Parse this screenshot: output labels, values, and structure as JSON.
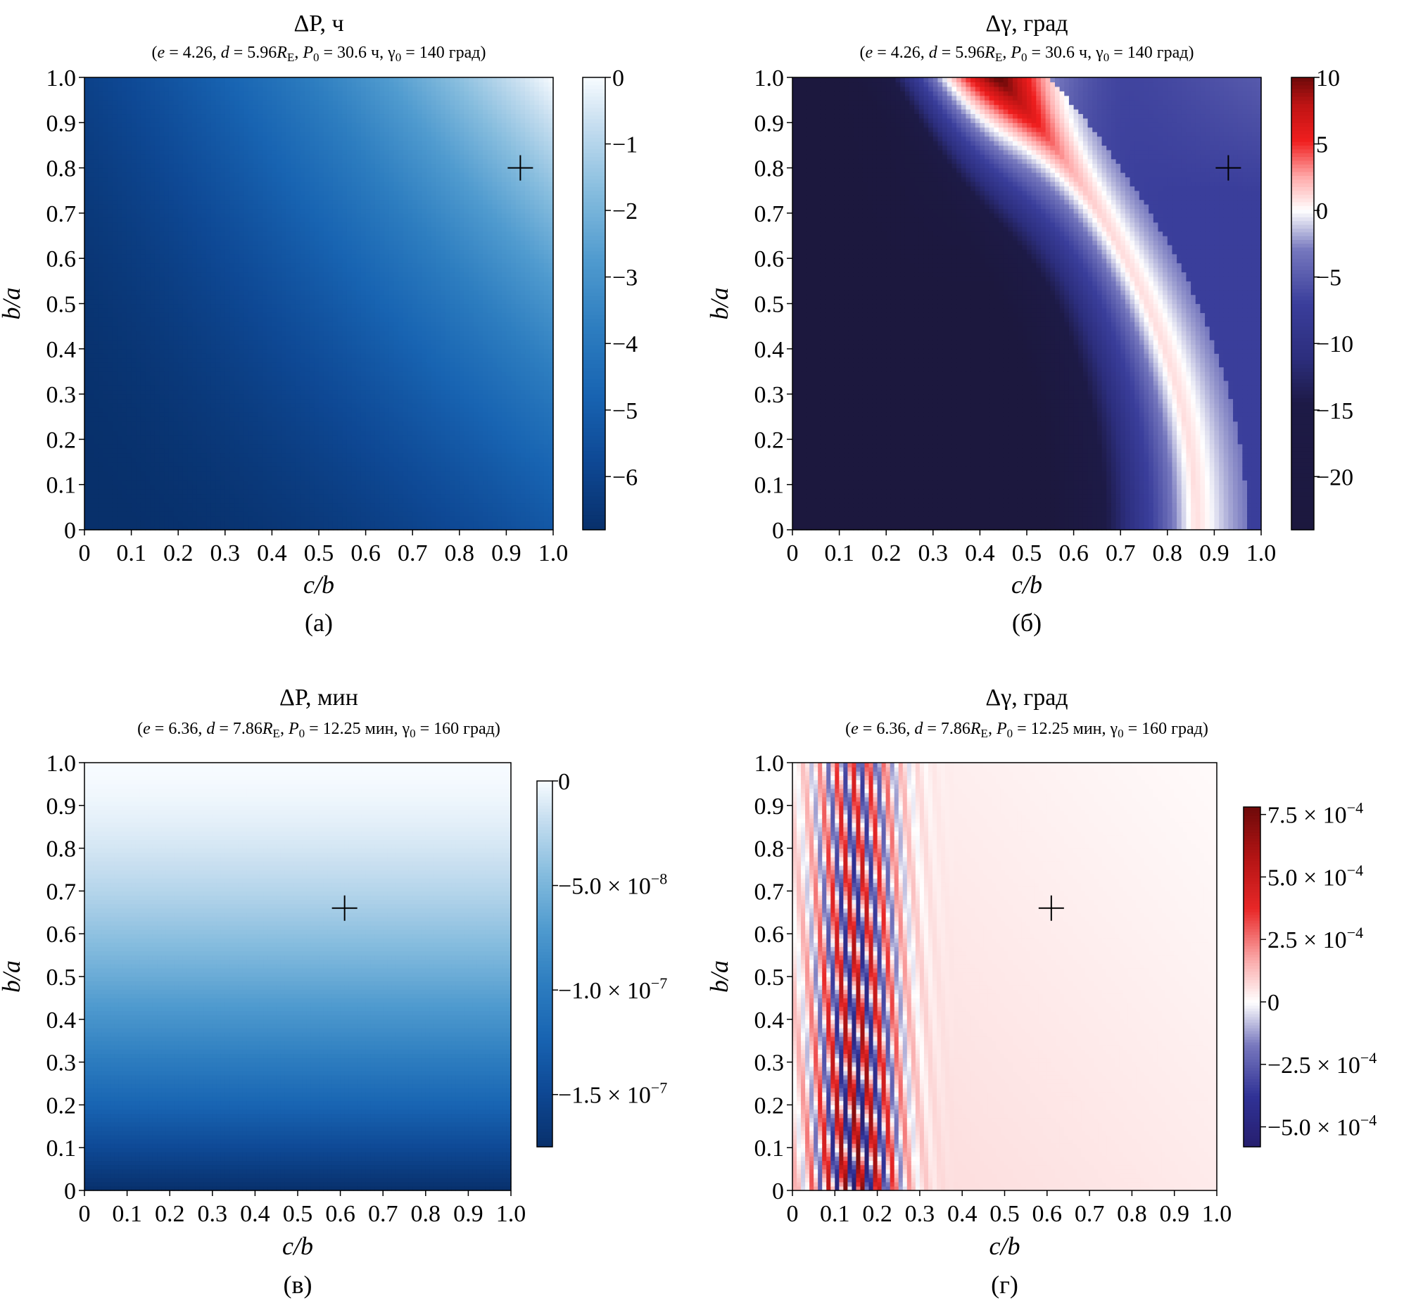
{
  "chart_data": [
    {
      "panel": "a",
      "type": "heatmap",
      "caption": "(а)",
      "title": "ΔP, ч",
      "subtitle": "(e = 4.26, d = 5.96R_E, P_0 = 30.6 ч, γ_0 = 140 град)",
      "subtitle_parts": {
        "e": "4.26",
        "d": "5.96",
        "P0": "30.6 ч",
        "gamma0": "140 град"
      },
      "xlabel": "c/b",
      "ylabel": "b/a",
      "xlim": [
        0,
        1
      ],
      "ylim": [
        0,
        1
      ],
      "xticks": [
        "0",
        "0.1",
        "0.2",
        "0.3",
        "0.4",
        "0.5",
        "0.6",
        "0.7",
        "0.8",
        "0.9",
        "1.0"
      ],
      "yticks": [
        "0",
        "0.1",
        "0.2",
        "0.3",
        "0.4",
        "0.5",
        "0.6",
        "0.7",
        "0.8",
        "0.9",
        "1.0"
      ],
      "colormap": "Blues_r",
      "colorbar": {
        "range": [
          -6.8,
          0
        ],
        "ticks": [
          0,
          -1,
          -2,
          -3,
          -4,
          -5,
          -6
        ],
        "tick_labels": [
          "0",
          "−1",
          "−2",
          "−3",
          "−4",
          "−5",
          "−6"
        ]
      },
      "marker": {
        "symbol": "+",
        "x": 0.93,
        "y": 0.8
      },
      "field": "dP_a"
    },
    {
      "panel": "b",
      "type": "heatmap",
      "caption": "(б)",
      "title": "Δγ, град",
      "subtitle": "(e = 4.26, d = 5.96R_E, P_0 = 30.6 ч, γ_0 = 140 град)",
      "subtitle_parts": {
        "e": "4.26",
        "d": "5.96",
        "P0": "30.6 ч",
        "gamma0": "140 град"
      },
      "xlabel": "c/b",
      "ylabel": "b/a",
      "xlim": [
        0,
        1
      ],
      "ylim": [
        0,
        1
      ],
      "xticks": [
        "0",
        "0.1",
        "0.2",
        "0.3",
        "0.4",
        "0.5",
        "0.6",
        "0.7",
        "0.8",
        "0.9",
        "1.0"
      ],
      "yticks": [
        "0",
        "0.1",
        "0.2",
        "0.3",
        "0.4",
        "0.5",
        "0.6",
        "0.7",
        "0.8",
        "0.9",
        "1.0"
      ],
      "colormap": "seismic",
      "colorbar": {
        "range": [
          -24,
          10
        ],
        "ticks": [
          10,
          5,
          0,
          -5,
          -10,
          -15,
          -20
        ],
        "tick_labels": [
          "10",
          "5",
          "0",
          "−5",
          "−10",
          "−15",
          "−20"
        ]
      },
      "marker": {
        "symbol": "+",
        "x": 0.93,
        "y": 0.8
      },
      "field": "dG_b"
    },
    {
      "panel": "c",
      "type": "heatmap",
      "caption": "(в)",
      "title": "ΔP, мин",
      "subtitle": "(e = 6.36, d = 7.86R_E, P_0 = 12.25 мин, γ_0 = 160 град)",
      "subtitle_parts": {
        "e": "6.36",
        "d": "7.86",
        "P0": "12.25 мин",
        "gamma0": "160 град"
      },
      "xlabel": "c/b",
      "ylabel": "b/a",
      "xlim": [
        0,
        1
      ],
      "ylim": [
        0,
        1
      ],
      "xticks": [
        "0",
        "0.1",
        "0.2",
        "0.3",
        "0.4",
        "0.5",
        "0.6",
        "0.7",
        "0.8",
        "0.9",
        "1.0"
      ],
      "yticks": [
        "0",
        "0.1",
        "0.2",
        "0.3",
        "0.4",
        "0.5",
        "0.6",
        "0.7",
        "0.8",
        "0.9",
        "1.0"
      ],
      "colormap": "Blues_r",
      "colorbar": {
        "range": [
          -1.75e-07,
          0
        ],
        "ticks": [
          0,
          -5e-08,
          -1e-07,
          -1.5e-07
        ],
        "tick_labels": [
          "0",
          "−5.0 × 10",
          "−1.0 × 10",
          "−1.5 × 10"
        ],
        "tick_exponents": [
          "",
          "−8",
          "−7",
          "−7"
        ]
      },
      "marker": {
        "symbol": "+",
        "x": 0.61,
        "y": 0.66
      },
      "field": "dP_c"
    },
    {
      "panel": "d",
      "type": "heatmap",
      "caption": "(г)",
      "title": "Δγ, град",
      "subtitle": "(e = 6.36, d = 7.86R_E, P_0 = 12.25 мин, γ_0 = 160 град)",
      "subtitle_parts": {
        "e": "6.36",
        "d": "7.86",
        "P0": "12.25 мин",
        "gamma0": "160 град"
      },
      "xlabel": "c/b",
      "ylabel": "b/a",
      "xlim": [
        0,
        1
      ],
      "ylim": [
        0,
        1
      ],
      "xticks": [
        "0",
        "0.1",
        "0.2",
        "0.3",
        "0.4",
        "0.5",
        "0.6",
        "0.7",
        "0.8",
        "0.9",
        "1.0"
      ],
      "yticks": [
        "0",
        "0.1",
        "0.2",
        "0.3",
        "0.4",
        "0.5",
        "0.6",
        "0.7",
        "0.8",
        "0.9",
        "1.0"
      ],
      "colormap": "seismic",
      "colorbar": {
        "range": [
          -0.00058,
          0.00078
        ],
        "ticks": [
          0.00075,
          0.0005,
          0.00025,
          0,
          -0.00025,
          -0.0005
        ],
        "tick_labels": [
          "7.5 × 10",
          "5.0 × 10",
          "2.5 × 10",
          "0",
          "−2.5 × 10",
          "−5.0 × 10"
        ],
        "tick_exponents": [
          "−4",
          "−4",
          "−4",
          "",
          "−4",
          "−4"
        ]
      },
      "marker": {
        "symbol": "+",
        "x": 0.61,
        "y": 0.66
      },
      "field": "dG_d"
    }
  ]
}
